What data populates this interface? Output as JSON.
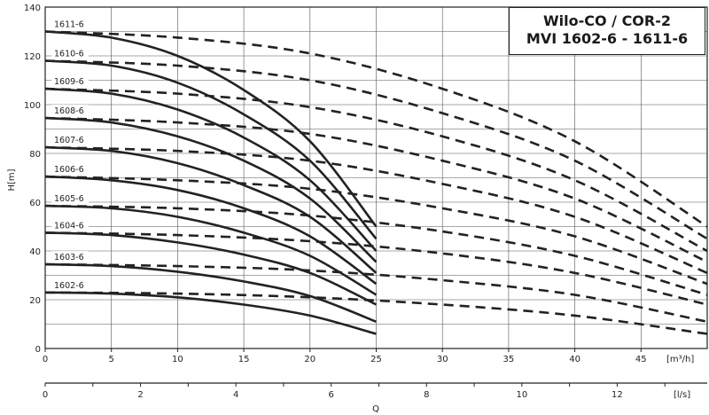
{
  "title_lines": [
    "Wilo-CO / COR-2",
    "MVI 1602-6 - 1611-6"
  ],
  "chart_data": {
    "type": "line",
    "ylabel": "H[m]",
    "xlabel": "Q",
    "x_unit_top": "[m³/h]",
    "x_unit_bottom": "[l/s]",
    "xlim": [
      0,
      50
    ],
    "ylim": [
      0,
      140
    ],
    "yticks": [
      0,
      20,
      40,
      60,
      80,
      100,
      120,
      140
    ],
    "xticks_m3h": [
      0,
      5,
      10,
      15,
      20,
      25,
      30,
      35,
      40,
      45
    ],
    "xticks_ls": [
      0,
      2,
      4,
      6,
      8,
      10,
      12
    ],
    "grid": true,
    "series": [
      {
        "name": "1611-6",
        "solid": [
          [
            0,
            130
          ],
          [
            5,
            127.5
          ],
          [
            10,
            120
          ],
          [
            15,
            106
          ],
          [
            20,
            85
          ],
          [
            25,
            50
          ]
        ],
        "dashed": [
          [
            0,
            130
          ],
          [
            10,
            127.5
          ],
          [
            20,
            121
          ],
          [
            30,
            106.5
          ],
          [
            40,
            85
          ],
          [
            50,
            50
          ]
        ]
      },
      {
        "name": "1610-6",
        "solid": [
          [
            0,
            118
          ],
          [
            5,
            116
          ],
          [
            10,
            109
          ],
          [
            15,
            96
          ],
          [
            20,
            77
          ],
          [
            25,
            45
          ]
        ],
        "dashed": [
          [
            0,
            118
          ],
          [
            10,
            116
          ],
          [
            20,
            110
          ],
          [
            30,
            96.5
          ],
          [
            40,
            77
          ],
          [
            50,
            45
          ]
        ]
      },
      {
        "name": "1609-6",
        "solid": [
          [
            0,
            106.5
          ],
          [
            5,
            104.5
          ],
          [
            10,
            98
          ],
          [
            15,
            86.5
          ],
          [
            20,
            69
          ],
          [
            25,
            40
          ]
        ],
        "dashed": [
          [
            0,
            106.5
          ],
          [
            10,
            104.5
          ],
          [
            20,
            99
          ],
          [
            30,
            87
          ],
          [
            40,
            69
          ],
          [
            50,
            40
          ]
        ]
      },
      {
        "name": "1608-6",
        "solid": [
          [
            0,
            94.5
          ],
          [
            5,
            92.7
          ],
          [
            10,
            87
          ],
          [
            15,
            77
          ],
          [
            20,
            61.5
          ],
          [
            25,
            35.5
          ]
        ],
        "dashed": [
          [
            0,
            94.5
          ],
          [
            10,
            92.7
          ],
          [
            20,
            88
          ],
          [
            30,
            77
          ],
          [
            40,
            61.5
          ],
          [
            50,
            35.5
          ]
        ]
      },
      {
        "name": "1607-6",
        "solid": [
          [
            0,
            82.5
          ],
          [
            5,
            81
          ],
          [
            10,
            76
          ],
          [
            15,
            67
          ],
          [
            20,
            54
          ],
          [
            25,
            31
          ]
        ],
        "dashed": [
          [
            0,
            82.5
          ],
          [
            10,
            81
          ],
          [
            20,
            77
          ],
          [
            30,
            67.5
          ],
          [
            40,
            54
          ],
          [
            50,
            31
          ]
        ]
      },
      {
        "name": "1606-6",
        "solid": [
          [
            0,
            70.5
          ],
          [
            5,
            69
          ],
          [
            10,
            65
          ],
          [
            15,
            57.5
          ],
          [
            20,
            46
          ],
          [
            25,
            26.5
          ]
        ],
        "dashed": [
          [
            0,
            70.5
          ],
          [
            10,
            69
          ],
          [
            20,
            65.5
          ],
          [
            30,
            57.5
          ],
          [
            40,
            46
          ],
          [
            50,
            26.5
          ]
        ]
      },
      {
        "name": "1605-6",
        "solid": [
          [
            0,
            58.5
          ],
          [
            5,
            57.5
          ],
          [
            10,
            54
          ],
          [
            15,
            47.5
          ],
          [
            20,
            38
          ],
          [
            25,
            22
          ]
        ],
        "dashed": [
          [
            0,
            58.5
          ],
          [
            10,
            57.5
          ],
          [
            20,
            54.5
          ],
          [
            30,
            48
          ],
          [
            40,
            38
          ],
          [
            50,
            22
          ]
        ]
      },
      {
        "name": "1604-6",
        "solid": [
          [
            0,
            47.5
          ],
          [
            5,
            46.5
          ],
          [
            10,
            43.5
          ],
          [
            15,
            38.5
          ],
          [
            20,
            31
          ],
          [
            25,
            18
          ]
        ],
        "dashed": [
          [
            0,
            47.5
          ],
          [
            10,
            46.5
          ],
          [
            20,
            44
          ],
          [
            30,
            39
          ],
          [
            40,
            31
          ],
          [
            50,
            18
          ]
        ]
      },
      {
        "name": "1603-6",
        "solid": [
          [
            0,
            34.5
          ],
          [
            5,
            33.8
          ],
          [
            10,
            31.5
          ],
          [
            15,
            27.5
          ],
          [
            20,
            21.5
          ],
          [
            25,
            11
          ]
        ],
        "dashed": [
          [
            0,
            34.5
          ],
          [
            10,
            33.8
          ],
          [
            20,
            32
          ],
          [
            30,
            28
          ],
          [
            40,
            22
          ],
          [
            50,
            11
          ]
        ]
      },
      {
        "name": "1602-6",
        "solid": [
          [
            0,
            23
          ],
          [
            5,
            22.5
          ],
          [
            10,
            21
          ],
          [
            15,
            18
          ],
          [
            20,
            13.5
          ],
          [
            25,
            6
          ]
        ],
        "dashed": [
          [
            0,
            23
          ],
          [
            10,
            22.5
          ],
          [
            20,
            21
          ],
          [
            30,
            18
          ],
          [
            40,
            13.5
          ],
          [
            50,
            6
          ]
        ]
      }
    ]
  }
}
